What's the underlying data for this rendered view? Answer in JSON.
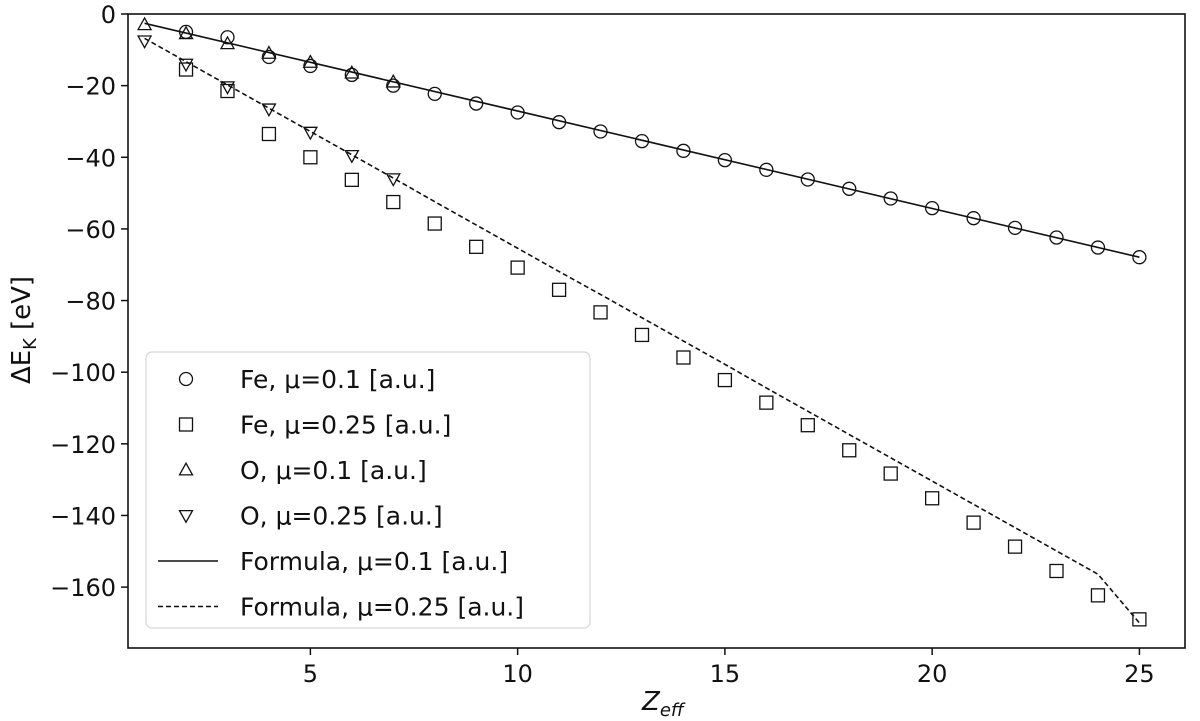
{
  "chart_data": {
    "type": "scatter",
    "title": "",
    "xlabel": "Z",
    "xlabel_sub": "eff",
    "ylabel_prefix": "ΔE",
    "ylabel_sub": "K",
    "ylabel_unit": "[eV]",
    "xlim": [
      0.6,
      26.1
    ],
    "ylim": [
      -177,
      0
    ],
    "xticks": [
      5,
      10,
      15,
      20,
      25
    ],
    "yticks": [
      0,
      -20,
      -40,
      -60,
      -80,
      -100,
      -120,
      -140,
      -160
    ],
    "grid": false,
    "legend_position": "lower-left",
    "series": [
      {
        "name": "Fe, μ=0.1 [a.u.]",
        "marker": "circle",
        "x": [
          2,
          3,
          4,
          5,
          6,
          7,
          8,
          9,
          10,
          11,
          12,
          13,
          14,
          15,
          16,
          17,
          18,
          19,
          20,
          21,
          22,
          23,
          24,
          25
        ],
        "y": [
          -5,
          -6.5,
          -12,
          -14.5,
          -17,
          -20,
          -22.3,
          -25,
          -27.5,
          -30.2,
          -32.8,
          -35.5,
          -38.2,
          -40.8,
          -43.5,
          -46.2,
          -48.8,
          -51.5,
          -54.2,
          -57,
          -59.7,
          -62.4,
          -65.2,
          -67.9
        ]
      },
      {
        "name": "Fe, μ=0.25 [a.u.]",
        "marker": "square",
        "x": [
          2,
          3,
          4,
          5,
          6,
          7,
          8,
          9,
          10,
          11,
          12,
          13,
          14,
          15,
          16,
          17,
          18,
          19,
          20,
          21,
          22,
          23,
          24,
          25
        ],
        "y": [
          -15.5,
          -21.5,
          -33.5,
          -40,
          -46.3,
          -52.5,
          -58.5,
          -65,
          -70.8,
          -77,
          -83.3,
          -89.6,
          -95.9,
          -102.2,
          -108.5,
          -114.8,
          -121.8,
          -128.3,
          -135.2,
          -142,
          -148.7,
          -155.5,
          -162.3,
          -169
        ]
      },
      {
        "name": "O, μ=0.1 [a.u.]",
        "marker": "triangle-up",
        "x": [
          1,
          2,
          3,
          4,
          5,
          6,
          7
        ],
        "y": [
          -3,
          -5.5,
          -8.3,
          -11,
          -13.5,
          -16.5,
          -19
        ]
      },
      {
        "name": "O, μ=0.25 [a.u.]",
        "marker": "triangle-down",
        "x": [
          1,
          2,
          3,
          4,
          5,
          6,
          7
        ],
        "y": [
          -7.5,
          -14,
          -20.3,
          -26.5,
          -33,
          -39.5,
          -46
        ]
      },
      {
        "name": "Formula, μ=0.1 [a.u.]",
        "type": "line",
        "style": "solid",
        "x": [
          1,
          25
        ],
        "y": [
          -2.6,
          -67.9
        ]
      },
      {
        "name": "Formula, μ=0.25 [a.u.]",
        "type": "line",
        "style": "dashed",
        "x": [
          1,
          2,
          3,
          4,
          5,
          6,
          7,
          8,
          9,
          10,
          11,
          12,
          13,
          14,
          15,
          16,
          17,
          18,
          19,
          20,
          21,
          22,
          23,
          24,
          25
        ],
        "y": [
          -6.8,
          -13.3,
          -19.8,
          -26.3,
          -32.8,
          -39.3,
          -45.8,
          -52.4,
          -58.9,
          -65.4,
          -71.9,
          -78.3,
          -84.8,
          -91.3,
          -97.8,
          -104.4,
          -110.9,
          -117.4,
          -123.9,
          -130.4,
          -136.9,
          -143.4,
          -149.9,
          -156.4,
          -170
        ]
      }
    ]
  }
}
